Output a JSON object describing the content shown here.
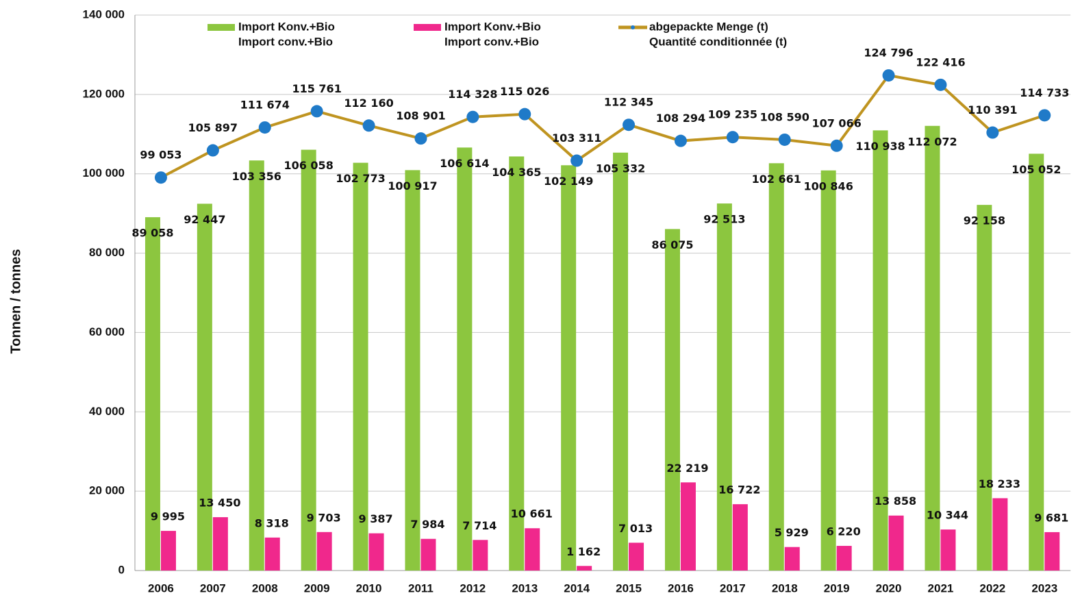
{
  "chart_data": {
    "type": "bar-line",
    "y_label": "Tonnen / tonnes",
    "categories": [
      "2006",
      "2007",
      "2008",
      "2009",
      "2010",
      "2011",
      "2012",
      "2013",
      "2014",
      "2015",
      "2016",
      "2017",
      "2018",
      "2019",
      "2020",
      "2021",
      "2022",
      "2023"
    ],
    "series": [
      {
        "name": [
          "Import Konv.+Bio",
          "Import conv.+Bio"
        ],
        "type": "bar",
        "color": "#8cc63f",
        "values": [
          89058,
          92447,
          103356,
          106058,
          102773,
          100917,
          106614,
          104365,
          102149,
          105332,
          86075,
          92513,
          102661,
          100846,
          110938,
          112072,
          92158,
          105052
        ],
        "value_labels": [
          "89 058",
          "92 447",
          "103 356",
          "106 058",
          "102 773",
          "100 917",
          "106 614",
          "104 365",
          "102 149",
          "105 332",
          "86 075",
          "92 513",
          "102 661",
          "100 846",
          "110 938",
          "112 072",
          "92 158",
          "105 052"
        ]
      },
      {
        "name": [
          "Import Konv.+Bio",
          "Import conv.+Bio"
        ],
        "type": "bar",
        "color": "#f0288c",
        "values": [
          9995,
          13450,
          8318,
          9703,
          9387,
          7984,
          7714,
          10661,
          1162,
          7013,
          22219,
          16722,
          5929,
          6220,
          13858,
          10344,
          18233,
          9681
        ],
        "value_labels": [
          "9 995",
          "13 450",
          "8 318",
          "9 703",
          "9 387",
          "7 984",
          "7 714",
          "10 661",
          "1 162",
          "7 013",
          "22 219",
          "16 722",
          "5 929",
          "6 220",
          "13 858",
          "10 344",
          "18 233",
          "9 681"
        ]
      },
      {
        "name": [
          "abgepackte Menge (t)",
          "Quantité conditionnée (t)"
        ],
        "type": "line",
        "color": "#bf9420",
        "marker_color": "#1f7ac8",
        "values": [
          99053,
          105897,
          111674,
          115761,
          112160,
          108901,
          114328,
          115026,
          103311,
          112345,
          108294,
          109235,
          108590,
          107066,
          124796,
          122416,
          110391,
          114733
        ],
        "value_labels": [
          "99 053",
          "105 897",
          "111 674",
          "115 761",
          "112 160",
          "108 901",
          "114 328",
          "115 026",
          "103 311",
          "112 345",
          "108 294",
          "109 235",
          "108 590",
          "107 066",
          "124 796",
          "122 416",
          "110 391",
          "114 733"
        ]
      }
    ],
    "ylim": [
      0,
      140000
    ],
    "yticks": [
      0,
      {
        "value": 20000,
        "label": "20 000"
      },
      {
        "value": 40000,
        "label": "40 000"
      },
      {
        "value": 60000,
        "label": "60 000"
      },
      {
        "value": 80000,
        "label": "80 000"
      },
      {
        "value": 100000,
        "label": "100 000"
      },
      {
        "value": 120000,
        "label": "120 000"
      },
      {
        "value": 140000,
        "label": "140 000"
      }
    ],
    "grid": true
  }
}
